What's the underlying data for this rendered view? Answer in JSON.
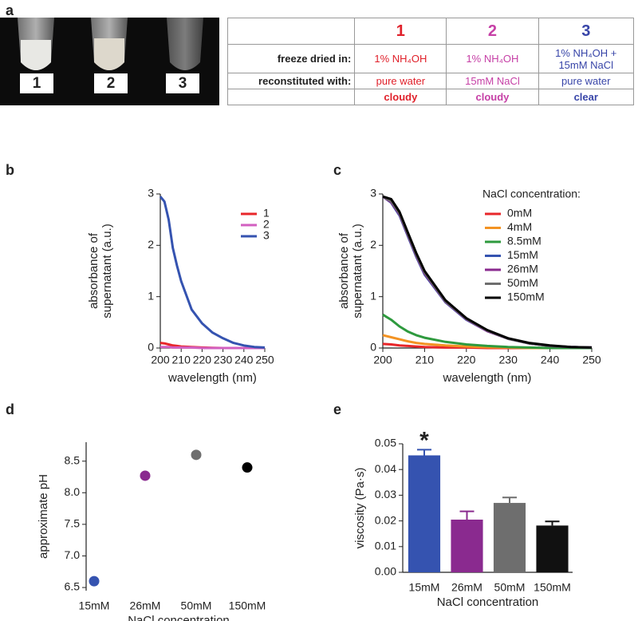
{
  "panel_labels": [
    "a",
    "b",
    "c",
    "d",
    "e"
  ],
  "photo": {
    "labels": [
      "1",
      "2",
      "3"
    ],
    "colors": [
      "#e0212b",
      "#c640a6",
      "#3845a8"
    ]
  },
  "table": {
    "header": [
      null,
      "1",
      "2",
      "3"
    ],
    "colors": [
      "#e0212b",
      "#c640a6",
      "#3845a8"
    ],
    "rows": [
      [
        "freeze dried in:",
        "1% NH₄OH",
        "1% NH₄OH",
        "1% NH₄OH + 15mM NaCl"
      ],
      [
        "reconstituted with:",
        "pure water",
        "15mM NaCl",
        "pure water"
      ],
      [
        null,
        "cloudy",
        "cloudy",
        "clear"
      ]
    ]
  },
  "chart_data": [
    {
      "type": "line",
      "x": [
        200,
        202,
        204,
        206,
        208,
        210,
        215,
        220,
        225,
        230,
        235,
        240,
        245,
        250
      ],
      "series": [
        {
          "name": "1",
          "color": "#e8262a",
          "values": [
            0.1,
            0.09,
            0.07,
            0.05,
            0.04,
            0.03,
            0.02,
            0.01,
            0.005,
            0,
            0,
            0,
            0,
            0
          ]
        },
        {
          "name": "2",
          "color": "#d25fc0",
          "values": [
            0.02,
            0.02,
            0.02,
            0.01,
            0.01,
            0.01,
            0.01,
            0,
            0,
            0,
            0,
            0,
            0,
            0
          ]
        },
        {
          "name": "3",
          "color": "#3553b0",
          "values": [
            2.95,
            2.85,
            2.5,
            1.95,
            1.6,
            1.3,
            0.75,
            0.48,
            0.3,
            0.19,
            0.1,
            0.05,
            0.02,
            0.01
          ]
        }
      ],
      "xlim": [
        200,
        250
      ],
      "xticks": [
        200,
        210,
        220,
        230,
        240,
        250
      ],
      "ylim": [
        0,
        3
      ],
      "yticks": [
        0,
        1,
        2,
        3
      ],
      "xlabel": "wavelength (nm)",
      "ylabel": [
        "absorbance of",
        "supernatant (a.u.)"
      ]
    },
    {
      "type": "line",
      "x": [
        200,
        202,
        204,
        206,
        208,
        210,
        215,
        220,
        225,
        230,
        235,
        240,
        245,
        250
      ],
      "legend_title": "NaCl concentration:",
      "series": [
        {
          "name": "0mM",
          "color": "#e8262a",
          "values": [
            0.08,
            0.07,
            0.05,
            0.04,
            0.03,
            0.02,
            0.01,
            0.01,
            0,
            0,
            0,
            0,
            0,
            0
          ]
        },
        {
          "name": "4mM",
          "color": "#f39323",
          "values": [
            0.25,
            0.21,
            0.17,
            0.13,
            0.1,
            0.08,
            0.05,
            0.03,
            0.015,
            0.01,
            0,
            0,
            0,
            0
          ]
        },
        {
          "name": "8.5mM",
          "color": "#2e9a3e",
          "values": [
            0.65,
            0.55,
            0.42,
            0.32,
            0.25,
            0.2,
            0.12,
            0.07,
            0.04,
            0.02,
            0.01,
            0,
            0,
            0
          ]
        },
        {
          "name": "15mM",
          "color": "#3553b0",
          "values": [
            2.95,
            2.83,
            2.58,
            2.18,
            1.78,
            1.43,
            0.89,
            0.55,
            0.33,
            0.18,
            0.09,
            0.04,
            0.02,
            0.01
          ]
        },
        {
          "name": "26mM",
          "color": "#8a2a8f",
          "values": [
            2.95,
            2.84,
            2.6,
            2.2,
            1.8,
            1.45,
            0.9,
            0.56,
            0.33,
            0.18,
            0.09,
            0.04,
            0.02,
            0.01
          ]
        },
        {
          "name": "50mM",
          "color": "#6e6e6e",
          "values": [
            2.95,
            2.86,
            2.62,
            2.22,
            1.82,
            1.47,
            0.91,
            0.57,
            0.34,
            0.18,
            0.09,
            0.04,
            0.02,
            0.01
          ]
        },
        {
          "name": "150mM",
          "color": "#000000",
          "values": [
            2.95,
            2.9,
            2.65,
            2.25,
            1.85,
            1.5,
            0.93,
            0.58,
            0.35,
            0.19,
            0.1,
            0.05,
            0.02,
            0.01
          ]
        }
      ],
      "xlim": [
        200,
        250
      ],
      "xticks": [
        200,
        210,
        220,
        230,
        240,
        250
      ],
      "ylim": [
        0,
        3
      ],
      "yticks": [
        0,
        1,
        2,
        3
      ],
      "xlabel": "wavelength (nm)",
      "ylabel": [
        "absorbance of",
        "supernatant (a.u.)"
      ]
    },
    {
      "type": "scatter",
      "categories": [
        "15mM",
        "26mM",
        "50mM",
        "150mM"
      ],
      "values": [
        6.6,
        8.27,
        8.6,
        8.4
      ],
      "colors": [
        "#3553b0",
        "#8a2a8f",
        "#6e6e6e",
        "#000000"
      ],
      "ylim": [
        6.45,
        8.8
      ],
      "yticks": [
        6.5,
        {
          "value": 7,
          "label": "7.0"
        },
        7.5,
        {
          "value": 8,
          "label": "8.0"
        },
        8.5
      ],
      "xlabel": "NaCl concentration",
      "ylabel": [
        "approximate pH"
      ]
    },
    {
      "type": "bar",
      "categories": [
        "15mM",
        "26mM",
        "50mM",
        "150mM"
      ],
      "values": [
        0.0455,
        0.0205,
        0.027,
        0.0182
      ],
      "errors": [
        0.0022,
        0.0032,
        0.0021,
        0.0016
      ],
      "colors": [
        "#3553b0",
        "#8a2a8f",
        "#6e6e6e",
        "#111111"
      ],
      "ylim": [
        0,
        0.05
      ],
      "yticks": [
        {
          "value": 0,
          "label": "0.00"
        },
        {
          "value": 0.01,
          "label": "0.01"
        },
        {
          "value": 0.02,
          "label": "0.02"
        },
        {
          "value": 0.03,
          "label": "0.03"
        },
        {
          "value": 0.04,
          "label": "0.04"
        },
        {
          "value": 0.05,
          "label": "0.05"
        }
      ],
      "xlabel": "NaCl concentration",
      "ylabel": [
        "viscosity (Pa·s)"
      ],
      "annotations": [
        {
          "text": "*",
          "x": "15mM"
        }
      ]
    }
  ]
}
